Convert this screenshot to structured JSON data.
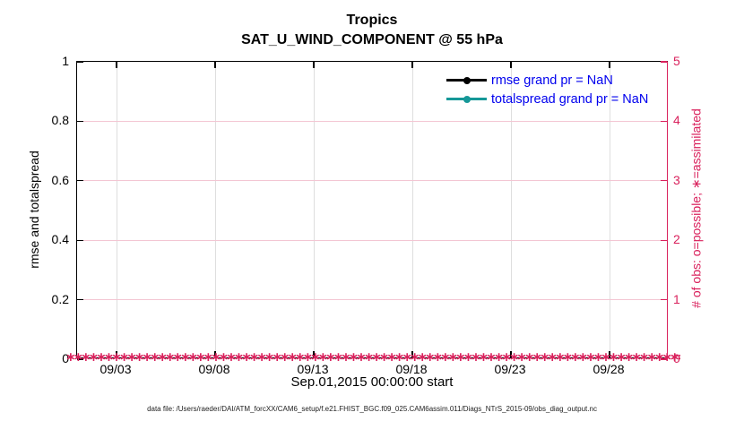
{
  "colors": {
    "accent_crimson": "#d9215c",
    "teal": "#169898",
    "legend_text_blue": "#0000ee",
    "grid_vertical": "#dedede",
    "grid_horizontal": "#f3c6d3",
    "axis_black": "#000000"
  },
  "chart_data": {
    "type": "line",
    "title": "Tropics",
    "subtitle": "SAT_U_WIND_COMPONENT @ 55 hPa",
    "xlabel": "Sep.01,2015 00:00:00 start",
    "caption": "data file: /Users/raeder/DAI/ATM_forcXX/CAM6_setup/f.e21.FHIST_BGC.f09_025.CAM6assim.011/Diags_NTrS_2015-09/obs_diag_output.nc",
    "grid": true,
    "legend_position": "top-right-inside",
    "x_axis": {
      "start_label": "Sep.01,2015 00:00:00",
      "span_days": 30,
      "tick_day_offsets": [
        2,
        7,
        12,
        17,
        22,
        27
      ],
      "tick_labels": [
        "09/03",
        "09/08",
        "09/13",
        "09/18",
        "09/23",
        "09/28"
      ]
    },
    "left_axis": {
      "label": "rmse and totalspread",
      "ylim": [
        0,
        1
      ],
      "ticks": [
        0,
        0.2,
        0.4,
        0.6,
        0.8,
        1
      ],
      "tick_labels": [
        "0",
        "0.2",
        "0.4",
        "0.6",
        "0.8",
        "1"
      ],
      "color": "#000000"
    },
    "right_axis": {
      "label": "# of obs: o=possible; ∗=assimilated",
      "ylim": [
        0,
        5
      ],
      "ticks": [
        0,
        1,
        2,
        3,
        4,
        5
      ],
      "tick_labels": [
        "0",
        "1",
        "2",
        "3",
        "4",
        "5"
      ],
      "color": "#d9215c"
    },
    "series": [
      {
        "name": "rmse grand pr = NaN",
        "color": "#000000",
        "marker": "filled-circle",
        "grand_pr": "NaN",
        "values": []
      },
      {
        "name": "totalspread grand pr = NaN",
        "color": "#169898",
        "marker": "filled-circle",
        "grand_pr": "NaN",
        "values": []
      },
      {
        "name": "# of obs assimilated",
        "color": "#d9215c",
        "marker": "∗",
        "constant_value": 0,
        "note": "dense asterisk markers at y=0 across entire time span"
      }
    ],
    "obs_markers": {
      "symbol": "∗",
      "count": 135,
      "constant_value": 0,
      "color": "#d9215c"
    }
  }
}
